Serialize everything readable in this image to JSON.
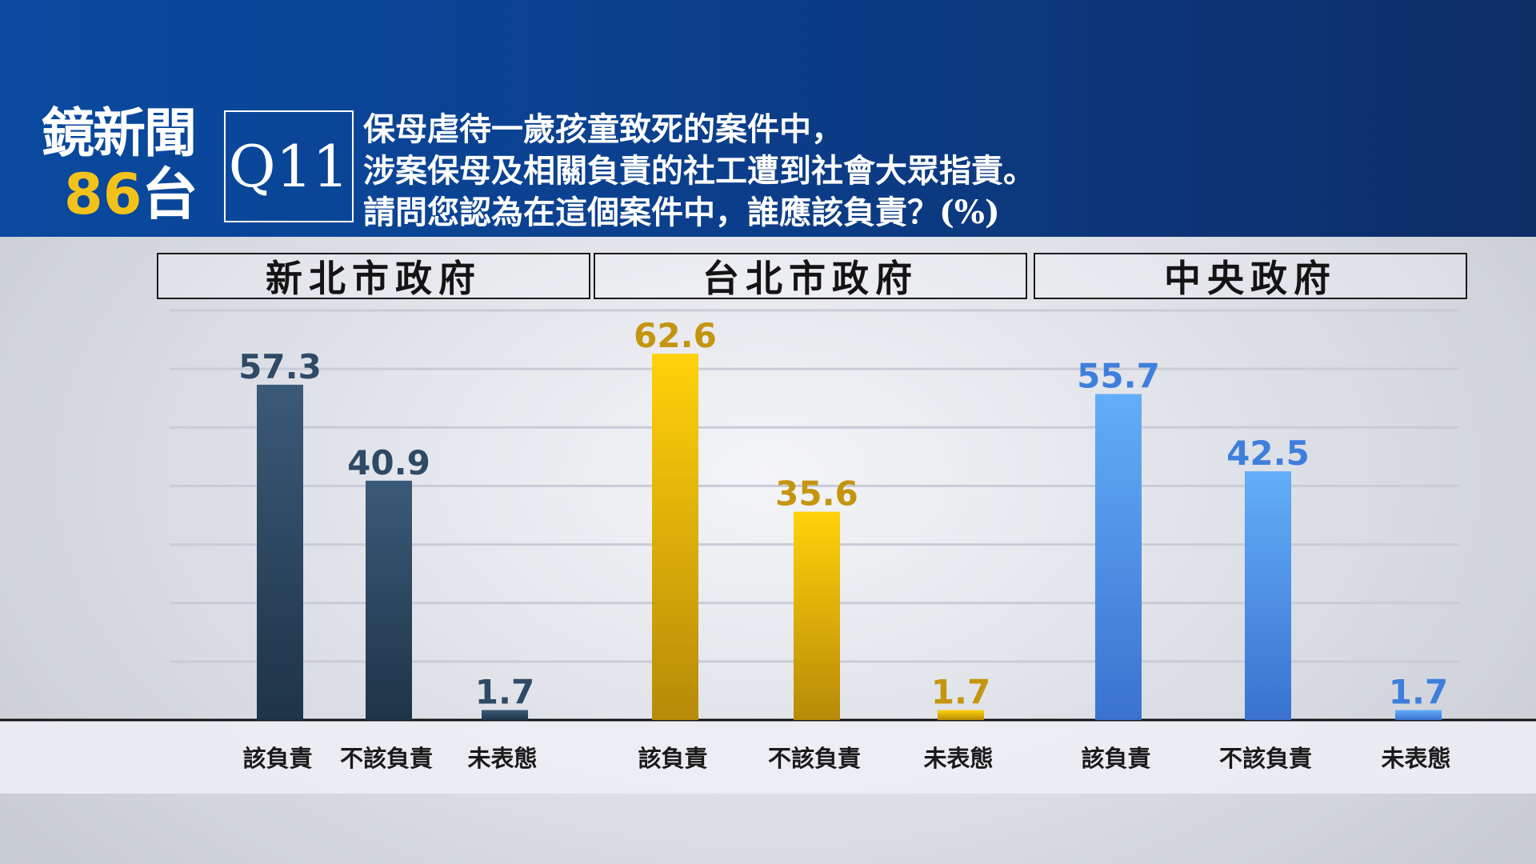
{
  "branding": {
    "name": "鏡新聞",
    "channel_number": "86",
    "channel_suffix": "台"
  },
  "question": {
    "id": "Q11",
    "lines": [
      "保母虐待一歲孩童致死的案件中，",
      "涉案保母及相關負責的社工遭到社會大眾指責。",
      "請問您認為在這個案件中，誰應該負責？(%)"
    ]
  },
  "chart_data": {
    "type": "bar",
    "title": "",
    "unit": "%",
    "ylim": [
      0,
      70
    ],
    "grid": true,
    "groups": [
      {
        "name": "新北市政府",
        "color": "#2a4660",
        "categories": [
          "該負責",
          "不該負責",
          "未表態"
        ],
        "values": [
          57.3,
          40.9,
          1.7
        ]
      },
      {
        "name": "台北市政府",
        "color": "#d5a10a",
        "categories": [
          "該負責",
          "不該負責",
          "未表態"
        ],
        "values": [
          62.6,
          35.6,
          1.7
        ]
      },
      {
        "name": "中央政府",
        "color": "#4a8ee8",
        "categories": [
          "該負責",
          "不該負責",
          "未表態"
        ],
        "values": [
          55.7,
          42.5,
          1.7
        ]
      }
    ]
  }
}
